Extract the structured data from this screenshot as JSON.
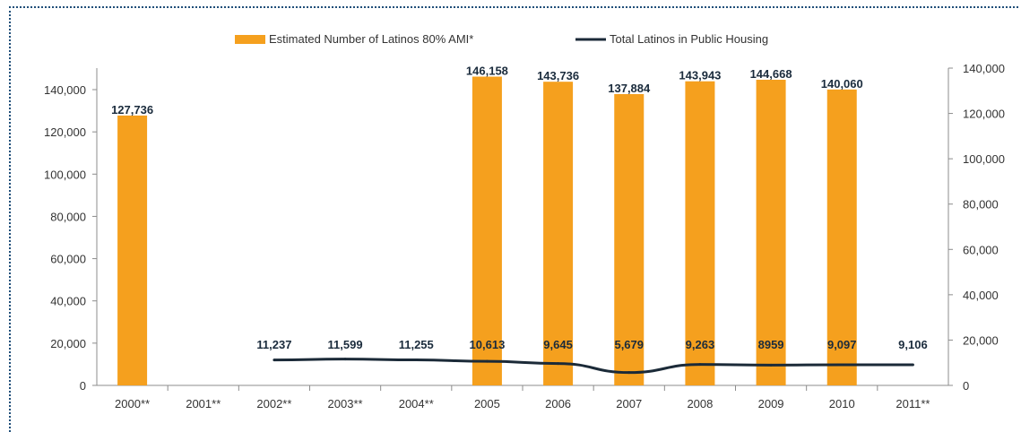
{
  "chart_data": {
    "type": "bar",
    "categories": [
      "2000**",
      "2001**",
      "2002**",
      "2003**",
      "2004**",
      "2005",
      "2006",
      "2007",
      "2008",
      "2009",
      "2010",
      "2011**"
    ],
    "series": [
      {
        "name": "Estimated Number of Latinos 80% AMI*",
        "type": "bar",
        "color": "#f5a01e",
        "values": [
          127736,
          null,
          null,
          null,
          null,
          146158,
          143736,
          137884,
          143943,
          144668,
          140060,
          null
        ],
        "labels": [
          "127,736",
          null,
          null,
          null,
          null,
          "146,158",
          "143,736",
          "137,884",
          "143,943",
          "144,668",
          "140,060",
          null
        ]
      },
      {
        "name": "Total Latinos in Public Housing",
        "type": "line",
        "color": "#1b2a38",
        "values": [
          null,
          null,
          11237,
          11599,
          11255,
          10613,
          9645,
          5679,
          9263,
          8959,
          9097,
          9106
        ],
        "labels": [
          null,
          null,
          "11,237",
          "11,599",
          "11,255",
          "10,613",
          "9,645",
          "5,679",
          "9,263",
          "8959",
          "9,097",
          "9,106"
        ]
      }
    ],
    "ylim": [
      0,
      140000
    ],
    "yticks": [
      "0",
      "20,000",
      "40,000",
      "60,000",
      "80,000",
      "100,000",
      "120,000",
      "140,000"
    ],
    "legend_position": "top",
    "grid": false
  }
}
